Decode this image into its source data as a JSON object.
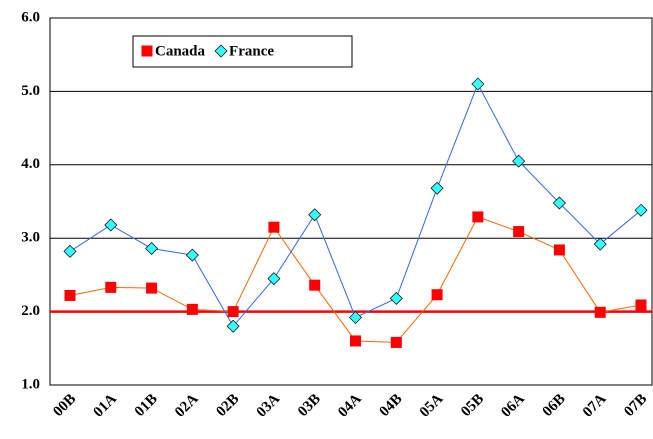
{
  "chart_data": {
    "type": "line",
    "categories": [
      "00B",
      "01A",
      "01B",
      "02A",
      "02B",
      "03A",
      "03B",
      "04A",
      "04B",
      "05A",
      "05B",
      "06A",
      "06B",
      "07A",
      "07B"
    ],
    "series": [
      {
        "name": "Canada",
        "color": "#ff0000",
        "line_color": "#ff6600",
        "marker": "square",
        "values": [
          2.22,
          2.33,
          2.32,
          2.03,
          2.0,
          3.15,
          2.36,
          1.6,
          1.58,
          2.23,
          3.29,
          3.09,
          2.84,
          1.99,
          2.09
        ]
      },
      {
        "name": "France",
        "color": "#33ffff",
        "line_color": "#3366ff",
        "marker": "diamond",
        "values": [
          2.82,
          3.18,
          2.86,
          2.77,
          1.8,
          2.45,
          3.32,
          1.92,
          2.18,
          3.68,
          5.1,
          4.05,
          3.48,
          2.92,
          3.38
        ]
      }
    ],
    "ylim": [
      1,
      6
    ],
    "yticks": [
      {
        "value": 1,
        "label": "1.0"
      },
      {
        "value": 2,
        "label": "2.0"
      },
      {
        "value": 3,
        "label": "3.0"
      },
      {
        "value": 4,
        "label": "4.0"
      },
      {
        "value": 5,
        "label": "5.0"
      },
      {
        "value": 6,
        "label": "6.0"
      }
    ],
    "grid": true,
    "reference_line": {
      "value": 2,
      "color": "#ff0000"
    }
  }
}
